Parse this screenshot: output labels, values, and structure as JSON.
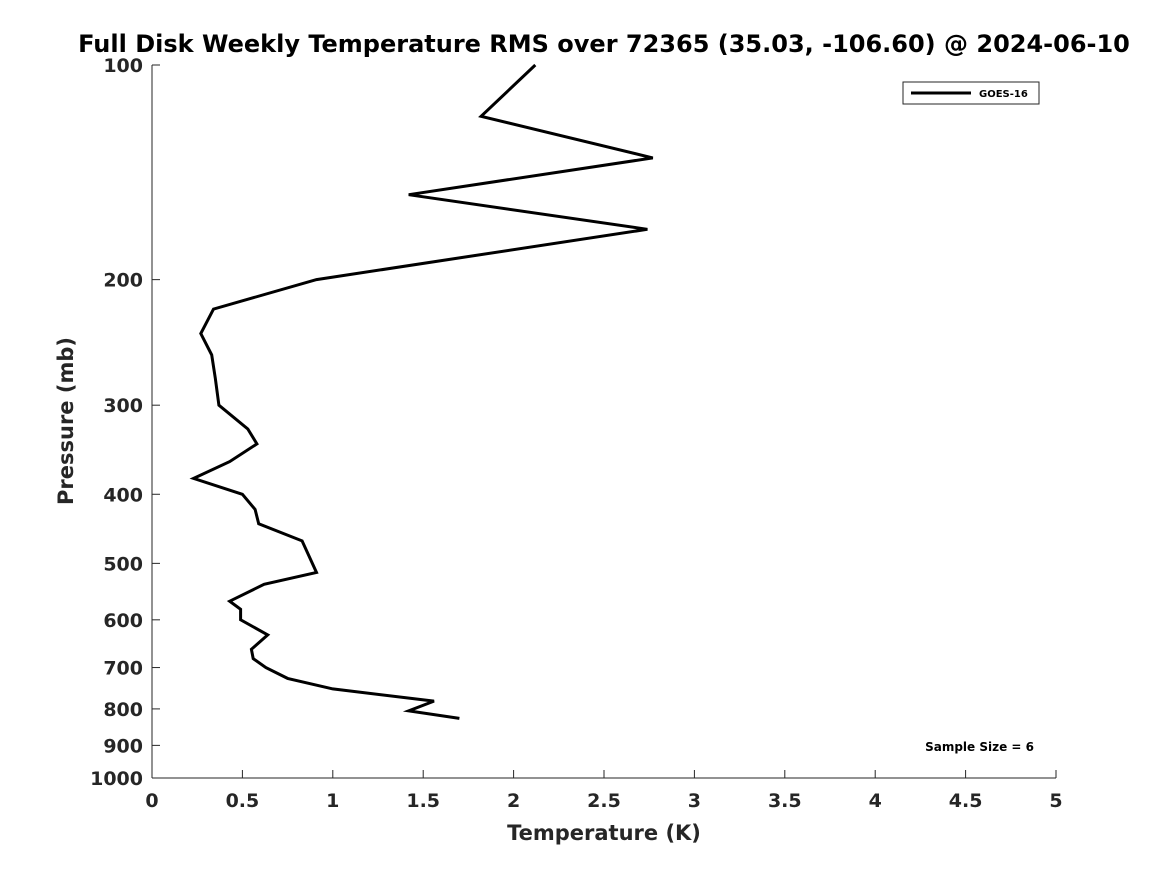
{
  "chart_data": {
    "type": "line",
    "title": "Full Disk Weekly Temperature RMS over 72365 (35.03, -106.60) @ 2024-06-10",
    "xlabel": "Temperature (K)",
    "ylabel": "Pressure (mb)",
    "xlim": [
      0,
      5
    ],
    "ylim": [
      100,
      1000
    ],
    "yscale": "log",
    "yreversed": true,
    "grid": false,
    "legend_position": "top-right",
    "x_ticks": [
      "0",
      "0.5",
      "1",
      "1.5",
      "2",
      "2.5",
      "3",
      "3.5",
      "4",
      "4.5",
      "5"
    ],
    "y_ticks": [
      "100",
      "200",
      "300",
      "400",
      "500",
      "600",
      "700",
      "800",
      "900",
      "1000"
    ],
    "series": [
      {
        "name": "GOES-16",
        "color": "#000000",
        "points": [
          [
            2.12,
            100
          ],
          [
            1.82,
            118
          ],
          [
            2.77,
            135
          ],
          [
            1.42,
            152
          ],
          [
            2.74,
            170
          ],
          [
            0.91,
            200
          ],
          [
            0.34,
            220
          ],
          [
            0.27,
            238
          ],
          [
            0.33,
            255
          ],
          [
            0.35,
            275
          ],
          [
            0.37,
            300
          ],
          [
            0.53,
            324
          ],
          [
            0.58,
            340
          ],
          [
            0.43,
            360
          ],
          [
            0.23,
            380
          ],
          [
            0.5,
            400
          ],
          [
            0.57,
            420
          ],
          [
            0.59,
            440
          ],
          [
            0.83,
            465
          ],
          [
            0.91,
            515
          ],
          [
            0.62,
            535
          ],
          [
            0.43,
            565
          ],
          [
            0.49,
            580
          ],
          [
            0.49,
            600
          ],
          [
            0.64,
            630
          ],
          [
            0.55,
            660
          ],
          [
            0.56,
            680
          ],
          [
            0.63,
            700
          ],
          [
            0.75,
            725
          ],
          [
            1.0,
            750
          ],
          [
            1.56,
            780
          ],
          [
            1.42,
            805
          ],
          [
            1.7,
            825
          ]
        ]
      }
    ],
    "annotation": "Sample Size = 6"
  }
}
